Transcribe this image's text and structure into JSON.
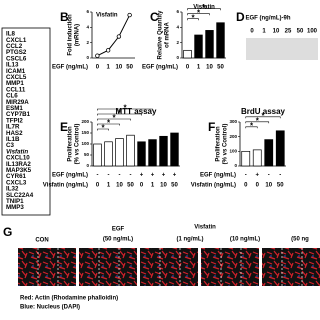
{
  "gene_list": [
    "IL8",
    "CXCL1",
    "CCL2",
    "PTGS2",
    "CSCL6",
    "IL13",
    "ICAM1",
    "CXCL5",
    "MMP1",
    "CCL11",
    "CL6",
    "MIR29A",
    "ESM1",
    "CYP7B1",
    "TFPI2",
    "IL7R",
    "HAS2",
    "IL1B",
    "C3",
    "Visfatin",
    "CXCL10",
    "IL13RA2",
    "MAP3K5",
    "CYR61",
    "CXCL3",
    "IL32",
    "SLC22A4",
    "TNIP1",
    "MMP3"
  ],
  "chart_data": [
    {
      "panel": "B",
      "type": "line",
      "title": "Visfatin",
      "y_label": [
        "Fold induction",
        "(mRNA)"
      ],
      "x_label": "EGF (ng/mL)",
      "categories": [
        "0",
        "1",
        "10",
        "50"
      ],
      "values": [
        0.3,
        1.0,
        2.8,
        5.6
      ],
      "color": "#000000",
      "ylim": [
        0,
        6
      ],
      "yticks": [
        0,
        2,
        4,
        6
      ]
    },
    {
      "panel": "C",
      "type": "bar",
      "title": "Visfatin",
      "y_label": [
        "Relative Quantity",
        "of mRNA"
      ],
      "x_label": "EGF (ng/mL)",
      "categories": [
        "0",
        "1",
        "10",
        "50"
      ],
      "values": [
        1,
        3,
        3.6,
        4.6
      ],
      "colors": [
        "#ffffff",
        "#000000",
        "#000000",
        "#000000"
      ],
      "ylim": [
        0,
        6
      ],
      "yticks": [
        0,
        2,
        4,
        6
      ],
      "annotations": [
        "*",
        "*",
        "*"
      ]
    },
    {
      "panel": "E",
      "type": "bar",
      "title": "MTT assay",
      "y_label": [
        "Proliferation",
        "(% vs Control)"
      ],
      "rows": [
        {
          "name": "EGF (ng/mL)",
          "values": [
            "-",
            "-",
            "-",
            "-",
            "+",
            "+",
            "+",
            "+"
          ]
        },
        {
          "name": "Visfatin (ng/mL)",
          "values": [
            "0",
            "1",
            "10",
            "50",
            "0",
            "1",
            "10",
            "50"
          ]
        }
      ],
      "values": [
        100,
        110,
        125,
        140,
        110,
        120,
        135,
        150
      ],
      "colors": [
        "#ffffff",
        "#ffffff",
        "#ffffff",
        "#ffffff",
        "#000000",
        "#000000",
        "#000000",
        "#000000"
      ],
      "ylim": [
        0,
        200
      ],
      "yticks": [
        0,
        50,
        100,
        150,
        200
      ],
      "annotations": [
        "*",
        "*",
        "*",
        "*",
        "*"
      ]
    },
    {
      "panel": "F",
      "type": "bar",
      "title": "BrdU assay",
      "y_label": [
        "Proliferation",
        "(% vs Control)"
      ],
      "rows": [
        {
          "name": "EGF (ng/mL)",
          "values": [
            "-",
            "+",
            "-",
            "-"
          ]
        },
        {
          "name": "Visfatin (ng/mL)",
          "values": [
            "0",
            "0",
            "10",
            "50"
          ]
        }
      ],
      "values": [
        100,
        110,
        180,
        240
      ],
      "colors": [
        "#ffffff",
        "#ffffff",
        "#000000",
        "#000000"
      ],
      "ylim": [
        0,
        300
      ],
      "yticks": [
        0,
        100,
        200,
        300
      ],
      "annotations": [
        "*",
        "*",
        "*"
      ]
    }
  ],
  "blot": {
    "panel": "D",
    "header": "EGF (ng/mL)-9h",
    "lanes": [
      "0",
      "1",
      "10",
      "25",
      "50",
      "100"
    ]
  },
  "micrographs": {
    "panel": "G",
    "labels": [
      "CON",
      "EGF",
      "(50 ng/mL)",
      "Visfatin",
      "(1 ng/mL)",
      "(10 ng/mL)",
      "(50 ng"
    ],
    "legend": [
      "Red: Actin (Rhodamine phalloidin)",
      "Blue: Nucleus (DAPI)"
    ]
  }
}
